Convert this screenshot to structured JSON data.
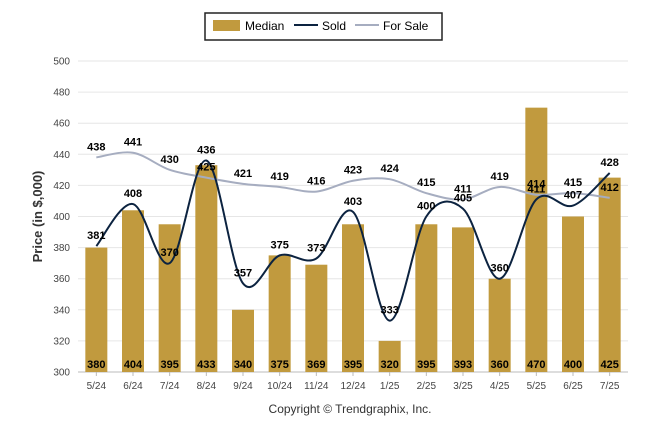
{
  "chart_data": {
    "type": "bar",
    "categories": [
      "5/24",
      "6/24",
      "7/24",
      "8/24",
      "9/24",
      "10/24",
      "11/24",
      "12/24",
      "1/25",
      "2/25",
      "3/25",
      "4/25",
      "5/25",
      "6/25",
      "7/25"
    ],
    "series": [
      {
        "name": "Median",
        "type": "bar",
        "color": "#c19a3e",
        "values": [
          380,
          404,
          395,
          433,
          340,
          375,
          369,
          395,
          320,
          395,
          393,
          360,
          470,
          400,
          425
        ]
      },
      {
        "name": "Sold",
        "type": "line",
        "color": "#0c2340",
        "values": [
          381,
          408,
          370,
          436,
          357,
          375,
          373,
          403,
          333,
          400,
          405,
          360,
          411,
          407,
          428
        ]
      },
      {
        "name": "For Sale",
        "type": "line",
        "color": "#a6adc0",
        "values": [
          438,
          441,
          430,
          425,
          421,
          419,
          416,
          423,
          424,
          415,
          411,
          419,
          414,
          415,
          412
        ]
      }
    ],
    "ylabel": "Price (in $,000)",
    "ylim": [
      300,
      500
    ],
    "yticks": [
      300,
      320,
      340,
      360,
      380,
      400,
      420,
      440,
      460,
      480,
      500
    ],
    "grid": true,
    "legend_position": "top-center",
    "footer": "Copyright © Trendgraphix, Inc."
  }
}
